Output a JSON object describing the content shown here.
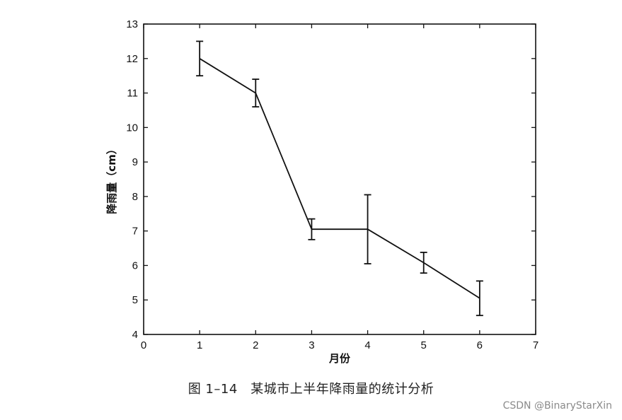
{
  "caption": "图 1–14　某城市上半年降雨量的统计分析",
  "watermark": "CSDN @BinaryStarXin",
  "chart_data": {
    "type": "line",
    "xlabel": "月份",
    "ylabel": "降雨量（cm）",
    "xlim": [
      0,
      7
    ],
    "ylim": [
      4,
      13
    ],
    "xticks": [
      0,
      1,
      2,
      3,
      4,
      5,
      6,
      7
    ],
    "yticks": [
      4,
      5,
      6,
      7,
      8,
      9,
      10,
      11,
      12,
      13
    ],
    "grid": false,
    "legend": "none",
    "line_color": "#111111",
    "series": [
      {
        "x": [
          1,
          2,
          3,
          4,
          5,
          6
        ],
        "y": [
          12.0,
          11.0,
          7.05,
          7.05,
          6.08,
          5.05
        ],
        "err_low": [
          11.5,
          10.6,
          6.75,
          6.05,
          5.78,
          4.55
        ],
        "err_high": [
          12.5,
          11.4,
          7.35,
          8.05,
          6.38,
          5.55
        ]
      }
    ]
  }
}
